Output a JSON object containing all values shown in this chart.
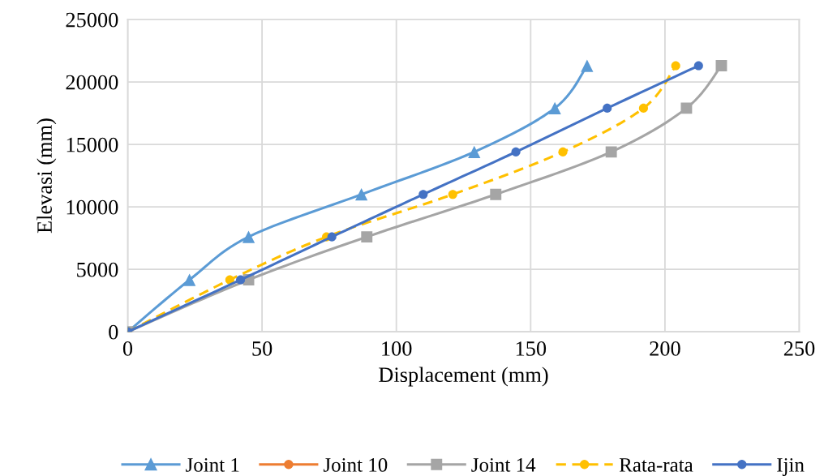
{
  "chart_data": {
    "type": "line",
    "xlabel": "Displacement (mm)",
    "ylabel": "Elevasi (mm)",
    "xlim": [
      0,
      250
    ],
    "xticks": [
      0,
      50,
      100,
      150,
      200,
      250
    ],
    "ylim": [
      0,
      25000
    ],
    "yticks": [
      0,
      5000,
      10000,
      15000,
      20000,
      25000
    ],
    "grid": true,
    "legend": "bottom",
    "series": [
      {
        "name": "Joint 1",
        "color": "#5b9bd5",
        "marker": "triangle",
        "line_style": "solid",
        "x": [
          0,
          23,
          45,
          87,
          129,
          159,
          171
        ],
        "values": [
          0,
          4160,
          7600,
          11000,
          14400,
          17900,
          21300
        ]
      },
      {
        "name": "Joint 10",
        "color": "#ed7d31",
        "marker": "circle",
        "line_style": "solid"
      },
      {
        "name": "Joint 14",
        "color": "#a5a5a5",
        "marker": "square",
        "line_style": "solid",
        "x": [
          0,
          45,
          89,
          137,
          180,
          208,
          221
        ],
        "values": [
          0,
          4160,
          7600,
          11000,
          14400,
          17900,
          21300
        ]
      },
      {
        "name": "Rata-rata",
        "color": "#ffc000",
        "marker": "circle",
        "line_style": "dashed",
        "x": [
          0,
          38,
          74,
          121,
          162,
          192,
          204
        ],
        "values": [
          0,
          4160,
          7600,
          11000,
          14400,
          17900,
          21300
        ]
      },
      {
        "name": "Ijin",
        "color": "#4472c4",
        "marker": "circle",
        "line_style": "solid",
        "x": [
          0,
          42,
          76,
          110,
          144.5,
          178.5,
          212.5
        ],
        "values": [
          0,
          4160,
          7600,
          11000,
          14400,
          17900,
          21300
        ]
      }
    ]
  }
}
